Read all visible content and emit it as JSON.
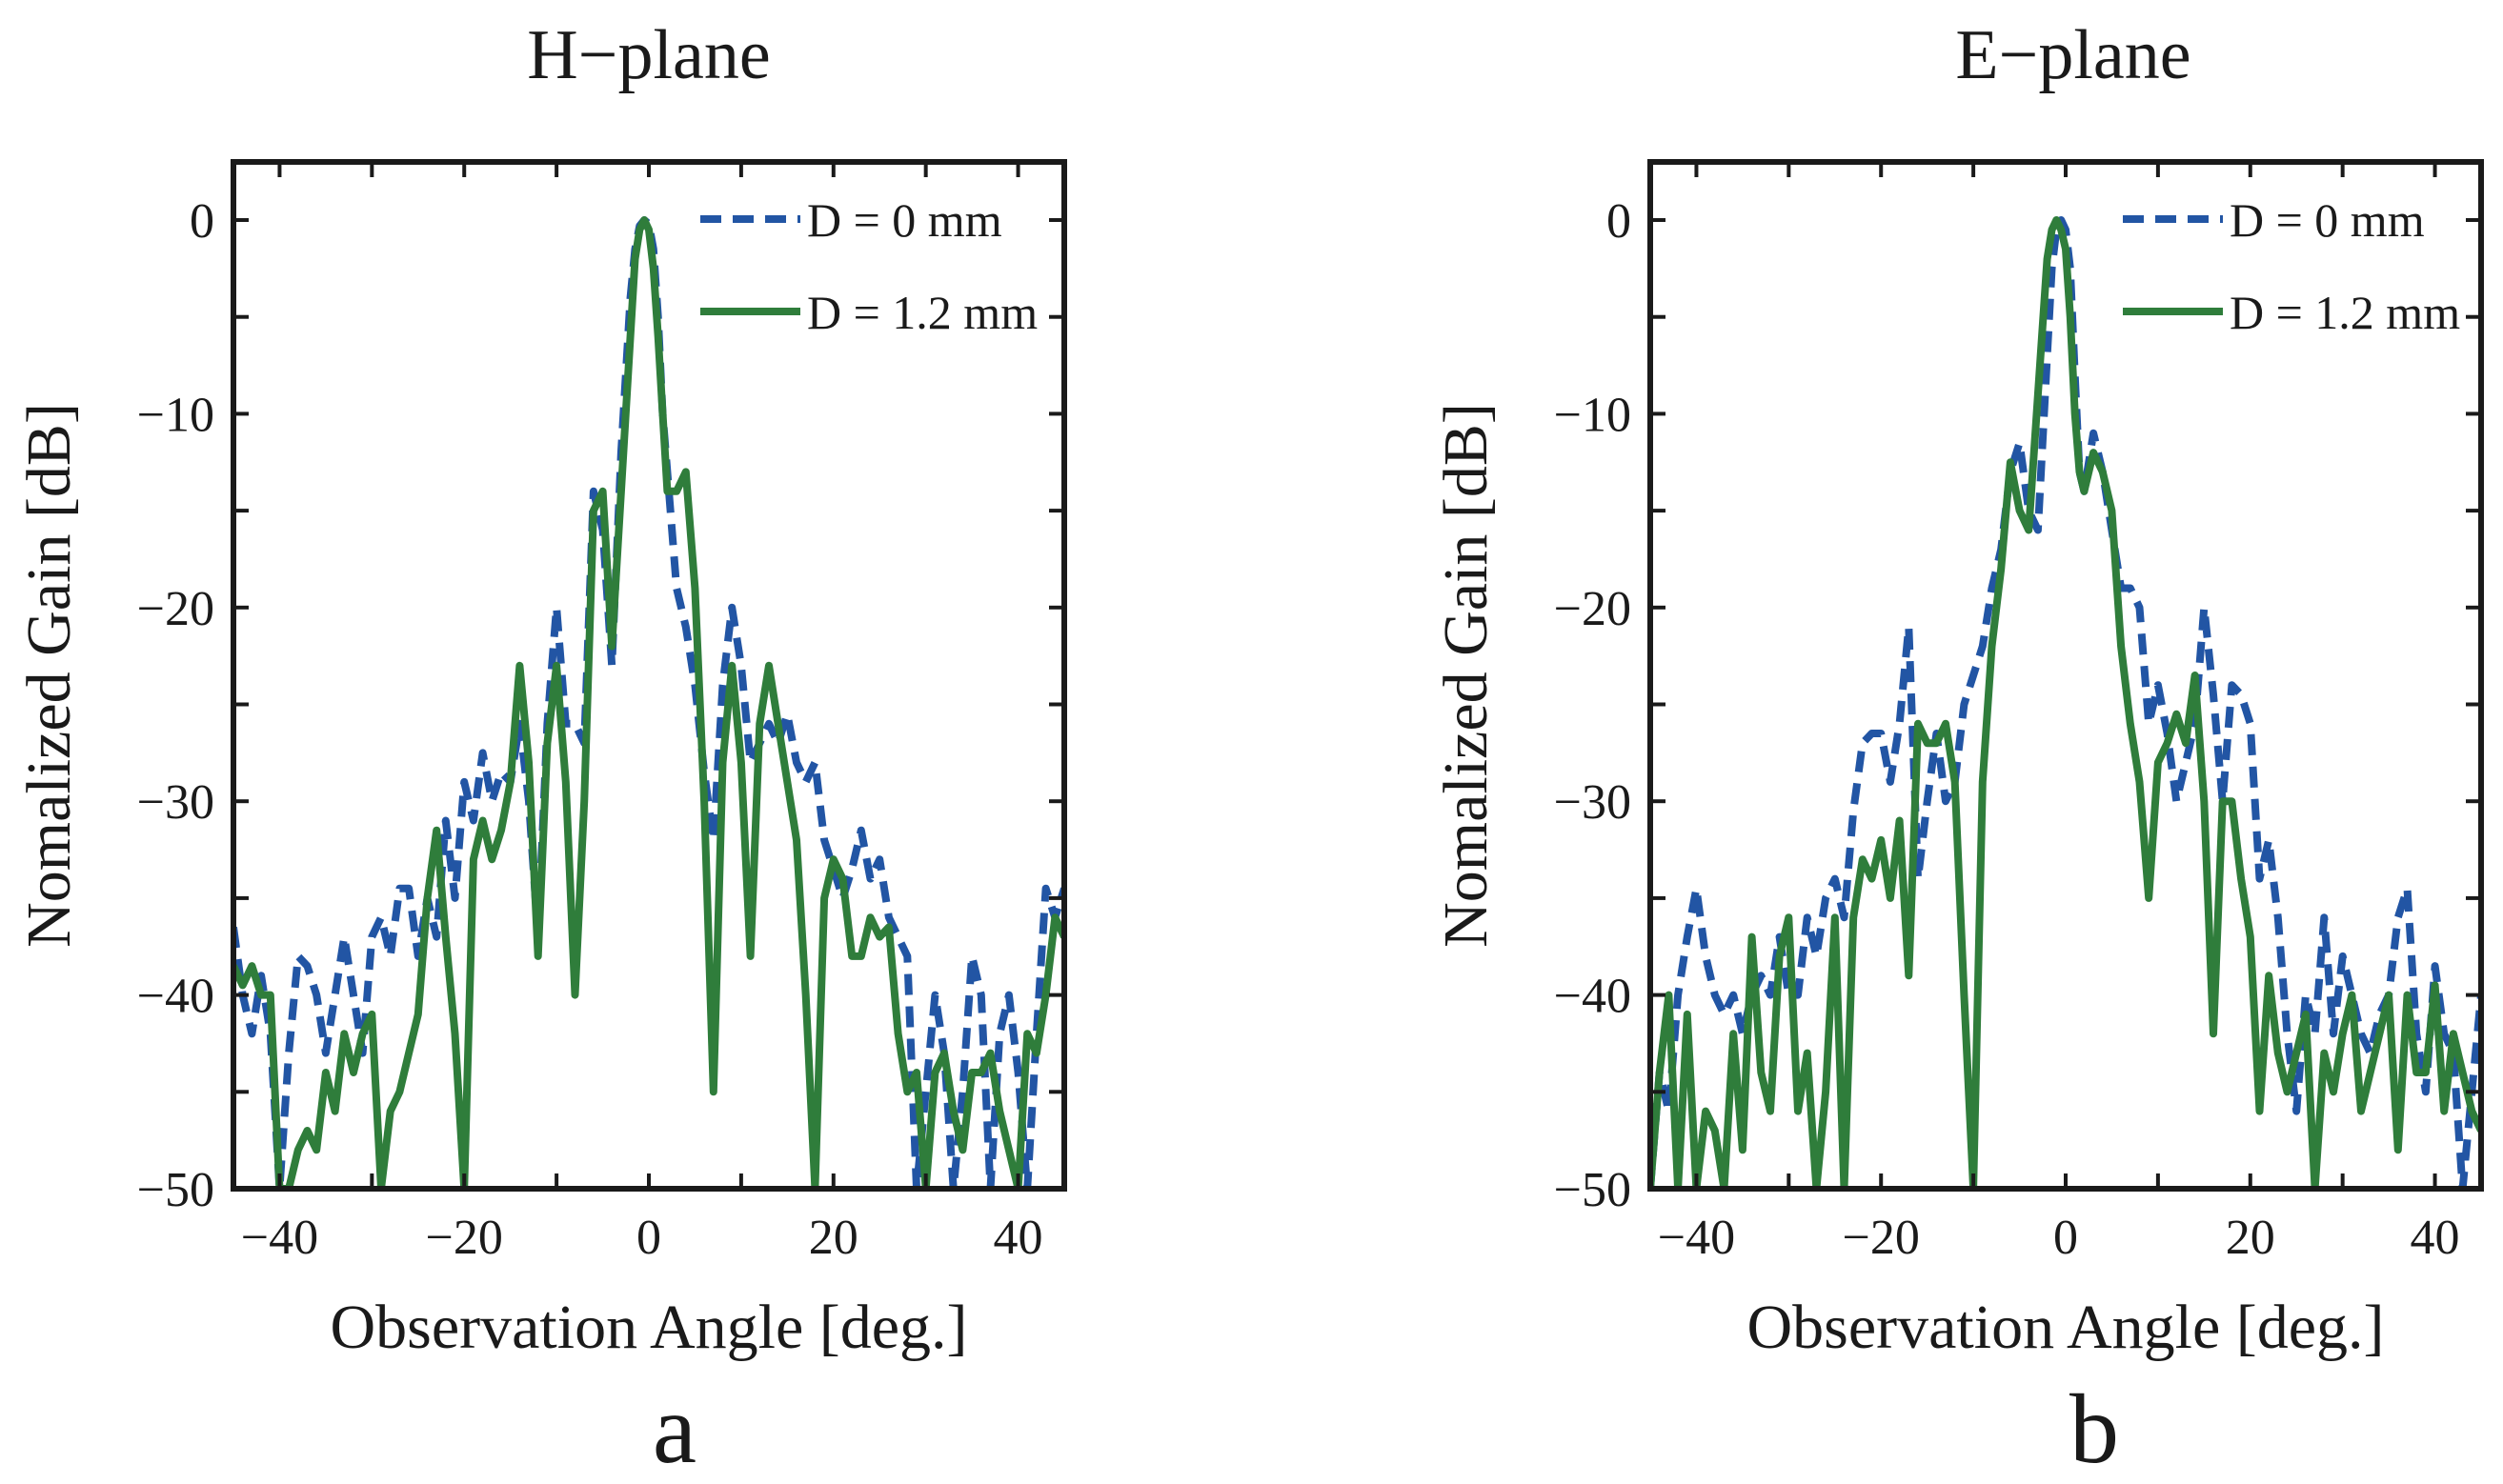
{
  "chart_data": [
    {
      "type": "line",
      "panel_letter": "a",
      "title": "H−plane",
      "xlabel": "Observation Angle [deg.]",
      "ylabel": "Nomalized Gain [dB]",
      "xlim": [
        -45,
        45
      ],
      "ylim": [
        -50,
        3
      ],
      "xticks": [
        -40,
        -20,
        0,
        20,
        40
      ],
      "yticks": [
        0,
        -10,
        -20,
        -30,
        -40,
        -50
      ],
      "xtick_labels": [
        "−40",
        "−20",
        "0",
        "20",
        "40"
      ],
      "ytick_labels": [
        "0",
        "−10",
        "−20",
        "−30",
        "−40",
        "−50"
      ],
      "legend_position": "top-right",
      "series": [
        {
          "name": "D = 0 mm",
          "color": "#2255a4",
          "style": "dashed",
          "x": [
            -45,
            -44,
            -43,
            -42,
            -41,
            -40,
            -39,
            -38,
            -37,
            -36,
            -35,
            -34,
            -33,
            -32,
            -31,
            -30,
            -29,
            -28,
            -27,
            -26,
            -25,
            -24,
            -23,
            -22,
            -21,
            -20,
            -19,
            -18,
            -17,
            -16,
            -15,
            -14,
            -13,
            -12,
            -11,
            -10,
            -9,
            -8,
            -7,
            -6,
            -5,
            -4,
            -3,
            -2,
            -1.5,
            -1,
            -0.5,
            0,
            0.5,
            1,
            1.5,
            2,
            3,
            4,
            5,
            6,
            7,
            8,
            9,
            10,
            11,
            12,
            13,
            14,
            15,
            16,
            17,
            18,
            19,
            20,
            21,
            22,
            23,
            24,
            25,
            26,
            27,
            28,
            29,
            30,
            31,
            32,
            33,
            34,
            35,
            36,
            37,
            38,
            39,
            40,
            41,
            42,
            43,
            44,
            45
          ],
          "y": [
            -36.5,
            -40,
            -42,
            -39,
            -42,
            -50,
            -43,
            -38,
            -38.5,
            -40,
            -43,
            -40,
            -37,
            -40,
            -43,
            -37,
            -36,
            -38,
            -34.5,
            -34.5,
            -38,
            -35,
            -37,
            -31,
            -35,
            -29,
            -31,
            -27.5,
            -30,
            -28.5,
            -29,
            -26,
            -30,
            -37,
            -26,
            -20,
            -26,
            -26,
            -27,
            -14,
            -16,
            -23,
            -12,
            -4,
            -1.5,
            -0.3,
            0,
            -0.2,
            -1.5,
            -5,
            -10,
            -13,
            -19,
            -21,
            -24,
            -28.5,
            -32,
            -24,
            -20,
            -23,
            -28,
            -27,
            -26,
            -27,
            -25.5,
            -28,
            -29,
            -28,
            -32,
            -33.5,
            -35,
            -33.5,
            -31.5,
            -34,
            -33,
            -36,
            -37,
            -38,
            -50,
            -45,
            -40,
            -43,
            -50,
            -45,
            -38,
            -40,
            -50,
            -42,
            -40,
            -44,
            -50,
            -42,
            -34.5,
            -36,
            -34.5
          ]
        },
        {
          "name": "D = 1.2 mm",
          "color": "#2f7d3b",
          "style": "solid",
          "x": [
            -45,
            -44,
            -43,
            -42,
            -41,
            -40,
            -39,
            -38,
            -37,
            -36,
            -35,
            -34,
            -33,
            -32,
            -31,
            -30,
            -29,
            -28,
            -27,
            -26,
            -25,
            -24,
            -23,
            -22,
            -21,
            -20,
            -19,
            -18,
            -17,
            -16,
            -15,
            -14,
            -13,
            -12,
            -11,
            -10,
            -9,
            -8,
            -7,
            -6,
            -5,
            -4,
            -3,
            -2,
            -1.5,
            -1,
            -0.5,
            0,
            0.5,
            1,
            1.5,
            2,
            3,
            4,
            5,
            6,
            7,
            8,
            9,
            10,
            11,
            12,
            13,
            14,
            15,
            16,
            17,
            18,
            19,
            20,
            21,
            22,
            23,
            24,
            25,
            26,
            27,
            28,
            29,
            30,
            31,
            32,
            33,
            34,
            35,
            36,
            37,
            38,
            39,
            40,
            41,
            42,
            43,
            44,
            45
          ],
          "y": [
            -38.5,
            -39.5,
            -38.5,
            -40,
            -40,
            -50,
            -50,
            -48,
            -47,
            -48,
            -44,
            -46,
            -42,
            -44,
            -42,
            -41,
            -50,
            -46,
            -45,
            -43,
            -41,
            -35,
            -31.5,
            -37,
            -42,
            -50,
            -33,
            -31,
            -33,
            -31.5,
            -29,
            -23,
            -28,
            -38,
            -27,
            -23,
            -29,
            -40,
            -30,
            -15,
            -14,
            -22,
            -14,
            -6,
            -2,
            -0.5,
            0,
            -0.5,
            -2.5,
            -6,
            -10,
            -14,
            -14,
            -13,
            -19,
            -30,
            -45,
            -28,
            -23,
            -28,
            -38,
            -26,
            -23,
            -26,
            -29,
            -32,
            -40,
            -50,
            -35,
            -33,
            -34,
            -38,
            -38,
            -36,
            -37,
            -36.5,
            -42,
            -45,
            -44,
            -50,
            -44,
            -43,
            -46,
            -48,
            -44,
            -44,
            -43,
            -46,
            -48,
            -50,
            -42,
            -43,
            -40,
            -36,
            -37
          ]
        }
      ]
    },
    {
      "type": "line",
      "panel_letter": "b",
      "title": "E−plane",
      "xlabel": "Observation Angle [deg.]",
      "ylabel": "Nomalized Gain [dB]",
      "xlim": [
        -45,
        45
      ],
      "ylim": [
        -50,
        3
      ],
      "xticks": [
        -40,
        -20,
        0,
        20,
        40
      ],
      "yticks": [
        0,
        -10,
        -20,
        -30,
        -40,
        -50
      ],
      "xtick_labels": [
        "−40",
        "−20",
        "0",
        "20",
        "40"
      ],
      "ytick_labels": [
        "0",
        "−10",
        "−20",
        "−30",
        "−40",
        "−50"
      ],
      "legend_position": "top-right",
      "series": [
        {
          "name": "D = 0 mm",
          "color": "#2255a4",
          "style": "dashed",
          "x": [
            -45,
            -44,
            -43,
            -42,
            -41,
            -40,
            -39,
            -38,
            -37,
            -36,
            -35,
            -34,
            -33,
            -32,
            -31,
            -30,
            -29,
            -28,
            -27,
            -26,
            -25,
            -24,
            -23,
            -22,
            -21,
            -20,
            -19,
            -18,
            -17,
            -16,
            -15,
            -14,
            -13,
            -12,
            -11,
            -10,
            -9,
            -8,
            -7,
            -6,
            -5,
            -4,
            -3,
            -2,
            -1.5,
            -1,
            -0.5,
            0,
            0.5,
            1,
            1.5,
            2,
            3,
            4,
            5,
            6,
            7,
            8,
            9,
            10,
            11,
            12,
            13,
            14,
            15,
            16,
            17,
            18,
            19,
            20,
            21,
            22,
            23,
            24,
            25,
            26,
            27,
            28,
            29,
            30,
            31,
            32,
            33,
            34,
            35,
            36,
            37,
            38,
            39,
            40,
            41,
            42,
            43,
            44,
            45
          ],
          "y": [
            -50,
            -44,
            -46,
            -40,
            -37,
            -34.5,
            -38,
            -40,
            -41,
            -40,
            -42,
            -40,
            -39,
            -40,
            -37,
            -40,
            -40,
            -36,
            -38,
            -35,
            -34,
            -36,
            -30.5,
            -27,
            -26.5,
            -26.5,
            -29,
            -26,
            -21,
            -34,
            -30,
            -26.5,
            -30,
            -29,
            -25,
            -23.5,
            -22,
            -19,
            -17,
            -13,
            -11.5,
            -15,
            -16,
            -7,
            -2.5,
            -0.5,
            0,
            -0.5,
            -2.5,
            -8,
            -13,
            -14,
            -11,
            -13,
            -16,
            -19,
            -19,
            -20,
            -26,
            -24,
            -26.5,
            -30,
            -28,
            -26,
            -20,
            -24.5,
            -30,
            -24,
            -24.5,
            -26,
            -34,
            -32,
            -36,
            -42,
            -46,
            -40,
            -42,
            -36,
            -42,
            -38,
            -40,
            -42,
            -43,
            -41,
            -40,
            -36,
            -34.5,
            -42,
            -45,
            -38.5,
            -42,
            -43,
            -50,
            -45,
            -40
          ]
        },
        {
          "name": "D = 1.2 mm",
          "color": "#2f7d3b",
          "style": "solid",
          "x": [
            -45,
            -44,
            -43,
            -42,
            -41,
            -40,
            -39,
            -38,
            -37,
            -36,
            -35,
            -34,
            -33,
            -32,
            -31,
            -30,
            -29,
            -28,
            -27,
            -26,
            -25,
            -24,
            -23,
            -22,
            -21,
            -20,
            -19,
            -18,
            -17,
            -16,
            -15,
            -14,
            -13,
            -12,
            -11,
            -10,
            -9,
            -8,
            -7,
            -6,
            -5,
            -4,
            -3,
            -2,
            -1.5,
            -1,
            -0.5,
            0,
            0.5,
            1,
            1.5,
            2,
            3,
            4,
            5,
            6,
            7,
            8,
            9,
            10,
            11,
            12,
            13,
            14,
            15,
            16,
            17,
            18,
            19,
            20,
            21,
            22,
            23,
            24,
            25,
            26,
            27,
            28,
            29,
            30,
            31,
            32,
            33,
            34,
            35,
            36,
            37,
            38,
            39,
            40,
            41,
            42,
            43,
            44,
            45
          ],
          "y": [
            -50,
            -44,
            -40,
            -50,
            -41,
            -50,
            -46,
            -47,
            -50,
            -42,
            -48,
            -37,
            -44,
            -46,
            -38,
            -36,
            -46,
            -43,
            -50,
            -45,
            -36,
            -50,
            -36,
            -33,
            -34,
            -32,
            -35,
            -31,
            -39,
            -26,
            -27,
            -27,
            -26,
            -29,
            -40,
            -50,
            -29,
            -22,
            -18,
            -12.5,
            -15,
            -16,
            -9,
            -2,
            -0.5,
            0,
            -0.5,
            -1.5,
            -5,
            -10,
            -13,
            -14,
            -12,
            -13,
            -15,
            -22,
            -26,
            -29,
            -35,
            -28,
            -27,
            -25.5,
            -27,
            -23.5,
            -30,
            -42,
            -30,
            -30,
            -34,
            -37,
            -46,
            -39,
            -43,
            -45,
            -43,
            -41,
            -50,
            -43,
            -45,
            -42,
            -40,
            -46,
            -44,
            -42,
            -40,
            -48,
            -40,
            -44,
            -44,
            -39.5,
            -46,
            -42,
            -44,
            -46,
            -47
          ]
        }
      ]
    }
  ]
}
